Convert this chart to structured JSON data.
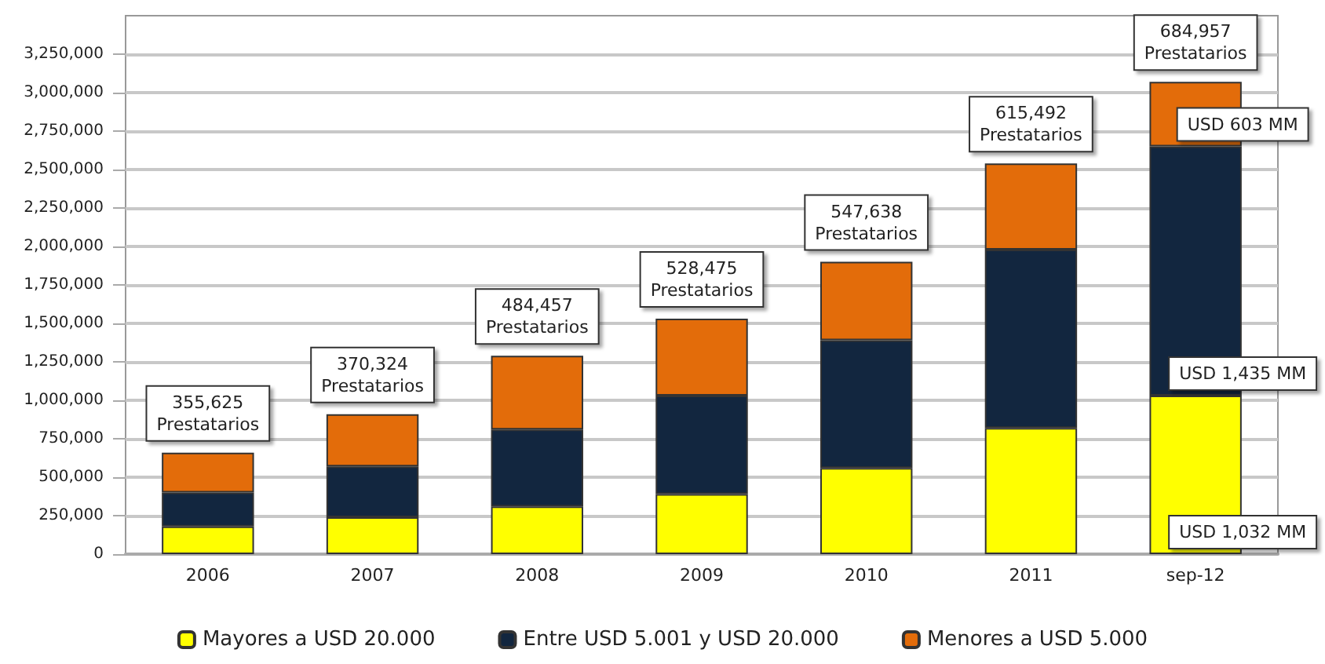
{
  "chart_data": {
    "type": "bar",
    "stacked": true,
    "categories": [
      "2006",
      "2007",
      "2008",
      "2009",
      "2010",
      "2011",
      "sep-12"
    ],
    "series": [
      {
        "name": "Mayores a USD 20.000",
        "color": "#ffff00",
        "values": [
          180000,
          240000,
          310000,
          390000,
          560000,
          820000,
          1030000
        ]
      },
      {
        "name": "Entre USD 5.001 y USD 20.000",
        "color": "#12263f",
        "values": [
          220000,
          330000,
          500000,
          640000,
          830000,
          1160000,
          1620000
        ]
      },
      {
        "name": "Menores a USD 5.000",
        "color": "#e36c0a",
        "values": [
          260000,
          340000,
          480000,
          500000,
          510000,
          560000,
          420000
        ]
      }
    ],
    "ylim": [
      0,
      3500000
    ],
    "yticks": [
      0,
      {
        "value": 250000,
        "label": "250,000"
      },
      {
        "value": 500000,
        "label": "500,000"
      },
      {
        "value": 750000,
        "label": "750,000"
      },
      {
        "value": 1000000,
        "label": "1,000,000"
      },
      {
        "value": 1250000,
        "label": "1,250,000"
      },
      {
        "value": 1500000,
        "label": "1,500,000"
      },
      {
        "value": 1750000,
        "label": "1,750,000"
      },
      {
        "value": 2000000,
        "label": "2,000,000"
      },
      {
        "value": 2250000,
        "label": "2,250,000"
      },
      {
        "value": 2500000,
        "label": "2,500,000"
      },
      {
        "value": 2750000,
        "label": "2,750,000"
      },
      {
        "value": 3000000,
        "label": "3,000,000"
      },
      {
        "value": 3250000,
        "label": "3,250,000"
      }
    ],
    "grid": "y",
    "legend": "bottom",
    "annotations": [
      {
        "text": "355,625\nPrestatarios",
        "x": "2006",
        "y": 660000
      },
      {
        "text": "370,324\nPrestatarios",
        "x": "2007",
        "y": 910000
      },
      {
        "text": "484,457\nPrestatarios",
        "x": "2008",
        "y": 1290000
      },
      {
        "text": "528,475\nPrestatarios",
        "x": "2009",
        "y": 1530000
      },
      {
        "text": "547,638\nPrestatarios",
        "x": "2010",
        "y": 1900000
      },
      {
        "text": "615,492\nPrestatarios",
        "x": "2011",
        "y": 2540000
      },
      {
        "text": "684,957\nPrestatarios",
        "x": "sep-12",
        "y": 3070000
      },
      "USD 603 MM",
      "USD 1,435 MM",
      "USD 1,032 MM"
    ]
  }
}
